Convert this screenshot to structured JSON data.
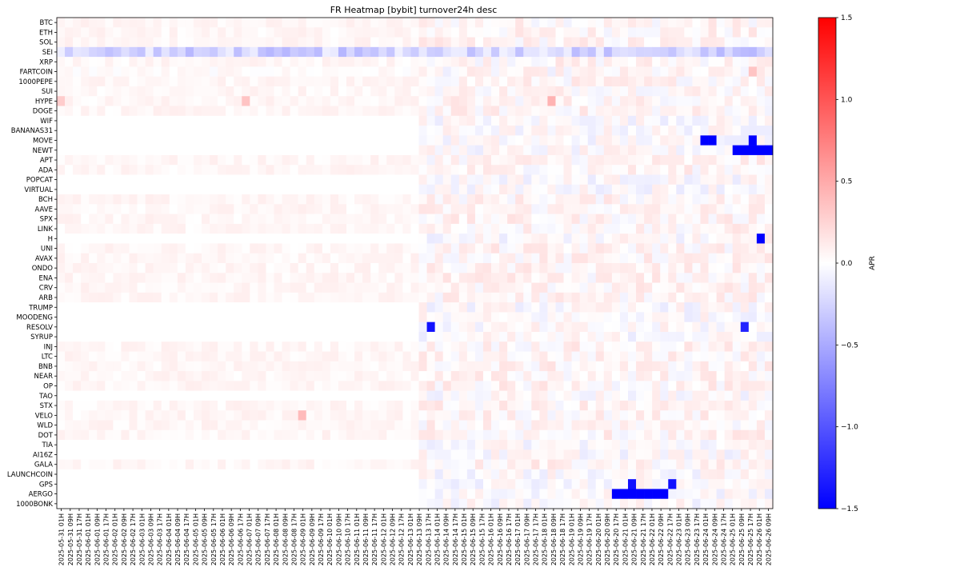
{
  "chart_data": {
    "type": "heatmap",
    "title": "FR Heatmap [bybit] turnover24h desc",
    "xlabel": "",
    "ylabel": "",
    "colorbar": {
      "label": "APR",
      "colormap": "bwr",
      "range": [
        -1.5,
        1.5
      ],
      "ticks": [
        1.5,
        1.0,
        0.5,
        0.0,
        -0.5,
        -1.0,
        -1.5
      ],
      "tick_labels": [
        "1.5",
        "1.0",
        "0.5",
        "0.0",
        "−0.5",
        "−1.0",
        "−1.5"
      ]
    },
    "rows": [
      "BTC",
      "ETH",
      "SOL",
      "SEI",
      "XRP",
      "FARTCOIN",
      "1000PEPE",
      "SUI",
      "HYPE",
      "DOGE",
      "WIF",
      "BANANAS31",
      "MOVE",
      "NEWT",
      "APT",
      "ADA",
      "POPCAT",
      "VIRTUAL",
      "BCH",
      "AAVE",
      "SPX",
      "LINK",
      "H",
      "UNI",
      "AVAX",
      "ONDO",
      "ENA",
      "CRV",
      "ARB",
      "TRUMP",
      "MOODENG",
      "RESOLV",
      "SYRUP",
      "INJ",
      "LTC",
      "BNB",
      "NEAR",
      "OP",
      "TAO",
      "STX",
      "VELO",
      "WLD",
      "DOT",
      "TIA",
      "AI16Z",
      "GALA",
      "LAUNCHCOIN",
      "GPS",
      "AERGO",
      "1000BONK"
    ],
    "x_tick_labels": [
      "2025-05-31 01H",
      "2025-05-31 09H",
      "2025-05-31 17H",
      "2025-06-01 01H",
      "2025-06-01 09H",
      "2025-06-01 17H",
      "2025-06-02 01H",
      "2025-06-02 09H",
      "2025-06-02 17H",
      "2025-06-03 01H",
      "2025-06-03 09H",
      "2025-06-03 17H",
      "2025-06-04 01H",
      "2025-06-04 09H",
      "2025-06-04 17H",
      "2025-06-05 01H",
      "2025-06-05 09H",
      "2025-06-05 17H",
      "2025-06-06 01H",
      "2025-06-06 09H",
      "2025-06-06 17H",
      "2025-06-07 01H",
      "2025-06-07 09H",
      "2025-06-07 17H",
      "2025-06-08 01H",
      "2025-06-08 09H",
      "2025-06-08 17H",
      "2025-06-09 01H",
      "2025-06-09 09H",
      "2025-06-09 17H",
      "2025-06-10 01H",
      "2025-06-10 09H",
      "2025-06-10 17H",
      "2025-06-11 01H",
      "2025-06-11 09H",
      "2025-06-11 17H",
      "2025-06-12 01H",
      "2025-06-12 09H",
      "2025-06-12 17H",
      "2025-06-13 01H",
      "2025-06-13 09H",
      "2025-06-13 17H",
      "2025-06-14 01H",
      "2025-06-14 09H",
      "2025-06-14 17H",
      "2025-06-15 01H",
      "2025-06-15 09H",
      "2025-06-15 17H",
      "2025-06-16 01H",
      "2025-06-16 09H",
      "2025-06-16 17H",
      "2025-06-17 01H",
      "2025-06-17 09H",
      "2025-06-17 17H",
      "2025-06-18 01H",
      "2025-06-18 09H",
      "2025-06-18 17H",
      "2025-06-19 01H",
      "2025-06-19 09H",
      "2025-06-19 17H",
      "2025-06-20 01H",
      "2025-06-20 09H",
      "2025-06-20 17H",
      "2025-06-21 01H",
      "2025-06-21 09H",
      "2025-06-21 17H",
      "2025-06-22 01H",
      "2025-06-22 09H",
      "2025-06-22 17H",
      "2025-06-23 01H",
      "2025-06-23 09H",
      "2025-06-23 17H",
      "2025-06-24 01H",
      "2025-06-24 09H",
      "2025-06-24 17H",
      "2025-06-25 01H",
      "2025-06-25 09H",
      "2025-06-25 17H",
      "2025-06-26 01H",
      "2025-06-26 09H"
    ],
    "x_tick_step": 8,
    "x_range": [
      0,
      715
    ],
    "cells_per_tick_group": 9,
    "n_time_cells": 89,
    "grid": false,
    "features": [
      {
        "row": "SEI",
        "from_col": 0,
        "to_col": 88,
        "level": -0.35,
        "note": "mostly light-to-medium blue"
      },
      {
        "row": "FARTCOIN",
        "col": 86,
        "value": 0.35
      },
      {
        "row": "HYPE",
        "col": 0,
        "value": 0.3
      },
      {
        "row": "HYPE",
        "col": 61,
        "value": 0.45
      },
      {
        "row": "HYPE",
        "col": 23,
        "value": 0.35
      },
      {
        "row": "MOVE",
        "from_col": 80,
        "to_col": 81,
        "value": -1.5
      },
      {
        "row": "MOVE",
        "col": 86,
        "value": -1.5
      },
      {
        "row": "NEWT",
        "from_col": 84,
        "to_col": 88,
        "value": -1.5
      },
      {
        "row": "H",
        "col": 87,
        "value": -1.5
      },
      {
        "row": "RESOLV",
        "col": 46,
        "value": -1.4
      },
      {
        "row": "RESOLV",
        "col": 85,
        "value": -1.3
      },
      {
        "row": "AERGO",
        "from_col": 69,
        "to_col": 75,
        "value": -1.5
      },
      {
        "row": "GPS",
        "col": 71,
        "value": -1.4
      },
      {
        "row": "GPS",
        "col": 76,
        "value": -1.4
      },
      {
        "row": "VELO",
        "col": 30,
        "value": 0.4
      }
    ]
  }
}
